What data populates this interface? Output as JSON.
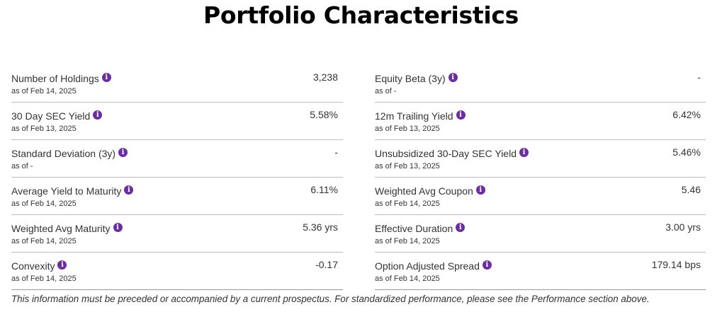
{
  "title": "Portfolio Characteristics",
  "left_rows": [
    {
      "label": "Number of Holdings",
      "asof": "as of Feb 14, 2025",
      "value": "3,238"
    },
    {
      "label": "30 Day SEC Yield",
      "asof": "as of Feb 13, 2025",
      "value": "5.58%"
    },
    {
      "label": "Standard Deviation (3y)",
      "asof": "as of -",
      "value": "-"
    },
    {
      "label": "Average Yield to Maturity",
      "asof": "as of Feb 14, 2025",
      "value": "6.11%"
    },
    {
      "label": "Weighted Avg Maturity",
      "asof": "as of Feb 14, 2025",
      "value": "5.36 yrs"
    },
    {
      "label": "Convexity",
      "asof": "as of Feb 14, 2025",
      "value": "-0.17"
    }
  ],
  "right_rows": [
    {
      "label": "Equity Beta (3y)",
      "asof": "as of -",
      "value": "-"
    },
    {
      "label": "12m Trailing Yield",
      "asof": "as of Feb 13, 2025",
      "value": "6.42%"
    },
    {
      "label": "Unsubsidized 30-Day SEC Yield",
      "asof": "as of Feb 13, 2025",
      "value": "5.46%"
    },
    {
      "label": "Weighted Avg Coupon",
      "asof": "as of Feb 14, 2025",
      "value": "5.46"
    },
    {
      "label": "Effective Duration",
      "asof": "as of Feb 14, 2025",
      "value": "3.00 yrs"
    },
    {
      "label": "Option Adjusted Spread",
      "asof": "as of Feb 14, 2025",
      "value": "179.14 bps"
    }
  ],
  "info_icon_glyph": "i",
  "footnote": "This information must be preceded or accompanied by a current prospectus. For standardized performance, please see the Performance section above.",
  "colors": {
    "info_icon": "#6a2ea0",
    "divider": "#bdbdbd"
  }
}
